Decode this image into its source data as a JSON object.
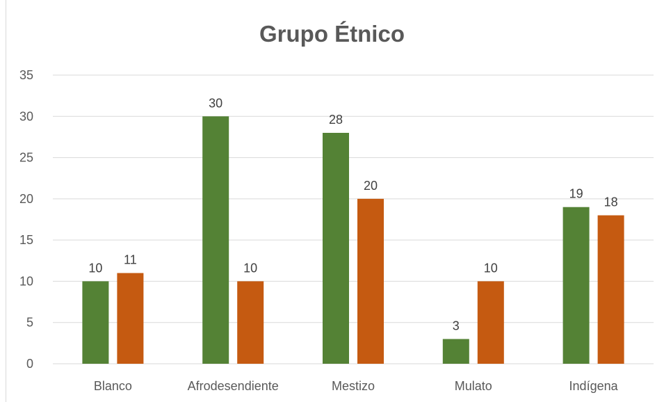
{
  "chart_data": {
    "type": "bar",
    "title": "Grupo Étnico",
    "xlabel": "",
    "ylabel": "",
    "categories": [
      "Blanco",
      "Afrodesendiente",
      "Mestizo",
      "Mulato",
      "Indígena"
    ],
    "series": [
      {
        "values": [
          10,
          30,
          28,
          3,
          19
        ],
        "color": "#548235"
      },
      {
        "values": [
          11,
          10,
          20,
          10,
          18
        ],
        "color": "#c55a11"
      }
    ],
    "ylim": [
      0,
      35
    ],
    "yticks": [
      0,
      5,
      10,
      15,
      20,
      25,
      30,
      35
    ],
    "grid": true,
    "data_labels": true,
    "gridline_color": "#d9d9d9",
    "text_color": "#595959"
  }
}
